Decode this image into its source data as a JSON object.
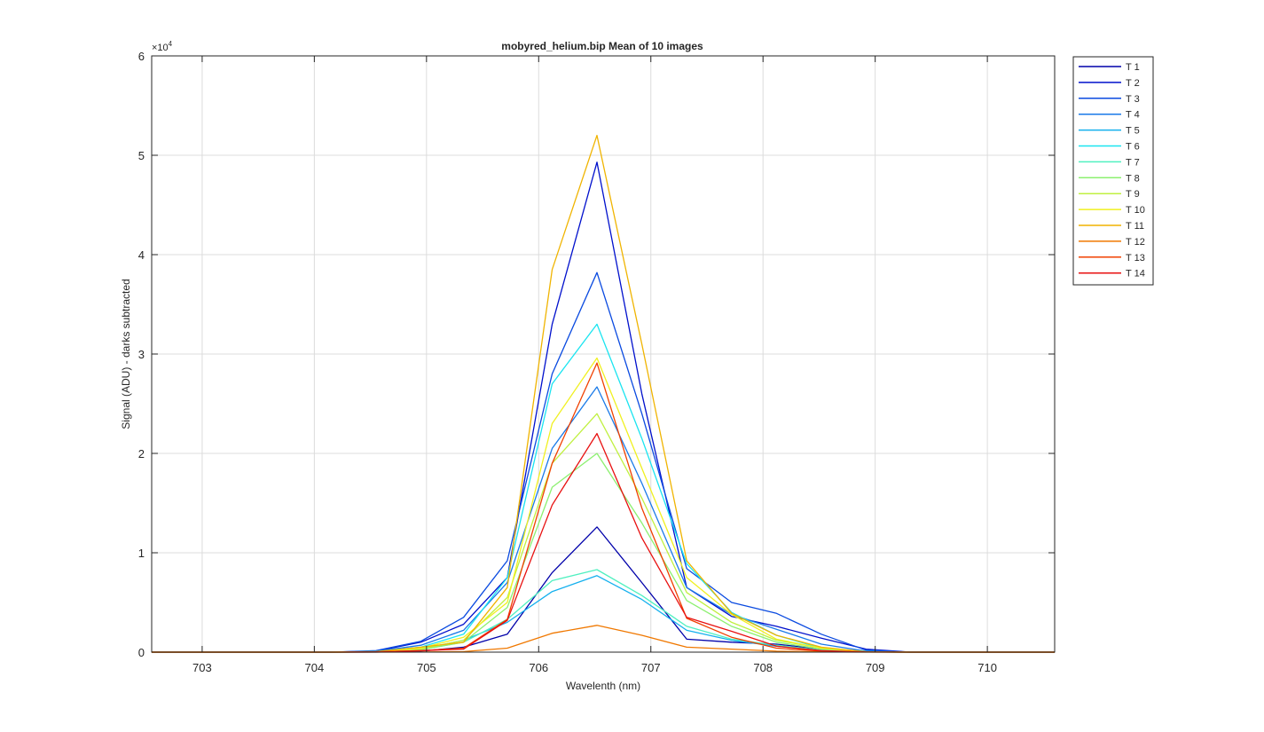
{
  "figure": {
    "title": "mobyred_helium.bip  Mean of 10 images",
    "xlabel": "Wavelenth (nm)",
    "ylabel": "Signal (ADU) - darks subtracted",
    "y_exponent_prefix": "×10",
    "y_exponent_power": "4"
  },
  "chart_data": {
    "type": "line",
    "title": "mobyred_helium.bip  Mean of 10 images",
    "xlabel": "Wavelenth (nm)",
    "ylabel": "Signal (ADU) - darks subtracted",
    "xlim": [
      702.55,
      710.6
    ],
    "ylim": [
      0,
      60000
    ],
    "xticks": [
      703,
      704,
      705,
      706,
      707,
      708,
      709,
      710
    ],
    "yticks": [
      0,
      10000,
      20000,
      30000,
      40000,
      50000,
      60000
    ],
    "ytick_labels": [
      "0",
      "1",
      "2",
      "3",
      "4",
      "5",
      "6"
    ],
    "grid": true,
    "legend_position": "outside-top-right",
    "x": [
      702.55,
      702.95,
      703.35,
      703.75,
      704.15,
      704.55,
      704.95,
      705.33,
      705.72,
      706.12,
      706.52,
      706.92,
      707.32,
      707.72,
      708.12,
      708.52,
      708.92,
      709.32,
      709.72,
      710.12,
      710.6
    ],
    "series": [
      {
        "name": "T 1",
        "color": "#0000aa",
        "values": [
          0,
          0,
          0,
          0,
          0,
          0,
          100,
          500,
          1800,
          8000,
          12600,
          7000,
          1300,
          1000,
          800,
          300,
          100,
          0,
          0,
          0,
          0
        ]
      },
      {
        "name": "T 2",
        "color": "#0010cc",
        "values": [
          0,
          0,
          0,
          0,
          0,
          100,
          1000,
          2800,
          7500,
          33000,
          49300,
          26000,
          6500,
          3600,
          2600,
          1400,
          300,
          0,
          0,
          0,
          0
        ]
      },
      {
        "name": "T 3",
        "color": "#0a4ae0",
        "values": [
          0,
          0,
          0,
          0,
          0,
          150,
          1100,
          3500,
          9200,
          28000,
          38200,
          24000,
          8400,
          5000,
          3900,
          1800,
          200,
          0,
          0,
          0,
          0
        ]
      },
      {
        "name": "T 4",
        "color": "#1a7ae8",
        "values": [
          0,
          0,
          0,
          0,
          0,
          80,
          700,
          2200,
          7000,
          20500,
          26700,
          17000,
          6500,
          3800,
          2300,
          800,
          100,
          0,
          0,
          0,
          0
        ]
      },
      {
        "name": "T 5",
        "color": "#14b0ee",
        "values": [
          0,
          0,
          0,
          0,
          0,
          40,
          300,
          1200,
          3000,
          6100,
          7700,
          5300,
          2200,
          1200,
          600,
          200,
          50,
          0,
          0,
          0,
          0
        ]
      },
      {
        "name": "T 6",
        "color": "#1ae4f0",
        "values": [
          0,
          0,
          0,
          0,
          0,
          60,
          500,
          1800,
          7500,
          27000,
          33000,
          21500,
          8900,
          4000,
          1700,
          400,
          50,
          0,
          0,
          0,
          0
        ]
      },
      {
        "name": "T 7",
        "color": "#50f0c0",
        "values": [
          0,
          0,
          0,
          0,
          0,
          40,
          250,
          1000,
          3300,
          7200,
          8300,
          5700,
          2600,
          1300,
          700,
          200,
          30,
          0,
          0,
          0,
          0
        ]
      },
      {
        "name": "T 8",
        "color": "#8cf070",
        "values": [
          0,
          0,
          0,
          0,
          0,
          30,
          250,
          1000,
          4500,
          16600,
          20000,
          13000,
          5200,
          2600,
          1000,
          300,
          30,
          0,
          0,
          0,
          0
        ]
      },
      {
        "name": "T 9",
        "color": "#c0f040",
        "values": [
          0,
          0,
          0,
          0,
          0,
          30,
          300,
          1200,
          5500,
          19000,
          24000,
          15500,
          6000,
          3000,
          1200,
          400,
          30,
          0,
          0,
          0,
          0
        ]
      },
      {
        "name": "T 10",
        "color": "#f0f020",
        "values": [
          0,
          0,
          0,
          0,
          0,
          40,
          400,
          1500,
          5000,
          23000,
          29600,
          18500,
          7500,
          3800,
          1300,
          400,
          30,
          0,
          0,
          0,
          0
        ]
      },
      {
        "name": "T 11",
        "color": "#f0b400",
        "values": [
          0,
          0,
          0,
          0,
          0,
          50,
          500,
          1000,
          6500,
          38500,
          52000,
          31000,
          9200,
          3900,
          1700,
          500,
          40,
          0,
          0,
          0,
          0
        ]
      },
      {
        "name": "T 12",
        "color": "#f07800",
        "values": [
          0,
          0,
          0,
          0,
          0,
          0,
          10,
          50,
          400,
          1900,
          2700,
          1700,
          500,
          300,
          100,
          30,
          0,
          0,
          0,
          0,
          0
        ]
      },
      {
        "name": "T 13",
        "color": "#f04000",
        "values": [
          0,
          0,
          0,
          0,
          0,
          20,
          150,
          400,
          3300,
          19000,
          29100,
          14500,
          3400,
          1500,
          400,
          100,
          10,
          0,
          0,
          0,
          0
        ]
      },
      {
        "name": "T 14",
        "color": "#e81010",
        "values": [
          0,
          0,
          0,
          0,
          0,
          20,
          150,
          300,
          3200,
          14800,
          22000,
          11500,
          3500,
          2100,
          600,
          150,
          10,
          0,
          0,
          0,
          0
        ]
      }
    ]
  }
}
